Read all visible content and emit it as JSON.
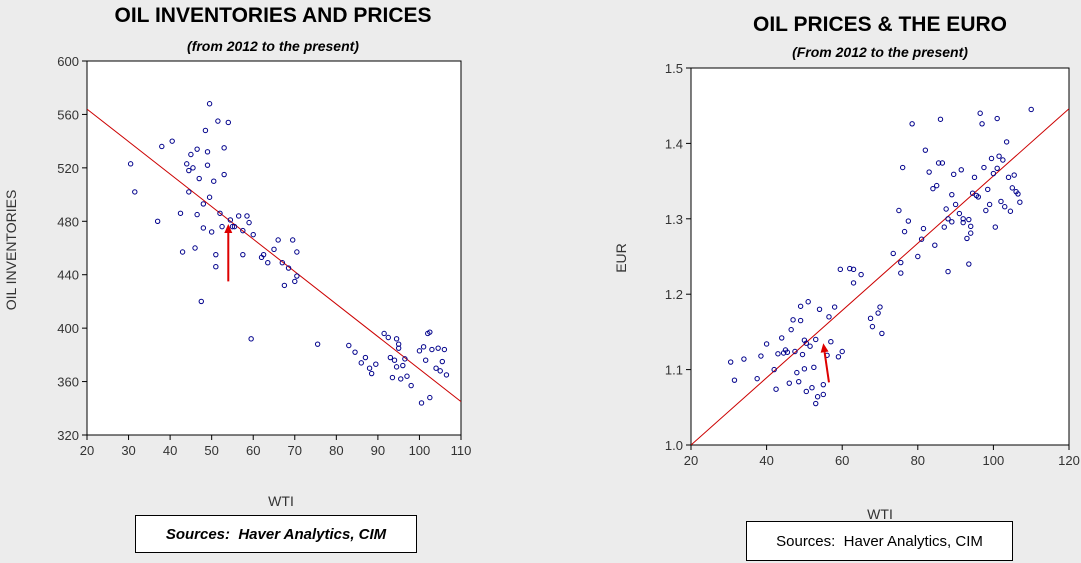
{
  "charts": {
    "left": {
      "title": "OIL INVENTORIES AND PRICES",
      "subtitle": "(from 2012 to the present)",
      "source": "Sources:  Haver Analytics, CIM"
    },
    "right": {
      "title": "OIL PRICES & THE EURO",
      "subtitle": "(From 2012 to the present)",
      "source": "Sources:  Haver Analytics, CIM"
    }
  },
  "chart_data": [
    {
      "type": "scatter",
      "title": "OIL INVENTORIES AND PRICES",
      "subtitle": "(from 2012 to the present)",
      "xlabel": "WTI",
      "ylabel": "OIL INVENTORIES",
      "xlim": [
        20,
        110
      ],
      "ylim": [
        320,
        600
      ],
      "xticks": [
        20,
        30,
        40,
        50,
        60,
        70,
        80,
        90,
        100,
        110
      ],
      "yticks": [
        320,
        360,
        400,
        440,
        480,
        520,
        560,
        600
      ],
      "grid": false,
      "marker_color": "#00008b",
      "fit_line": {
        "color": "#cc0000",
        "points": [
          [
            20,
            564
          ],
          [
            110,
            345
          ]
        ]
      },
      "arrow": {
        "color": "#dd0000",
        "from": [
          54,
          435
        ],
        "to": [
          54,
          478
        ]
      },
      "points": [
        [
          30.5,
          523
        ],
        [
          31.5,
          502
        ],
        [
          37.0,
          480
        ],
        [
          38.0,
          536
        ],
        [
          40.5,
          540
        ],
        [
          42.5,
          486
        ],
        [
          43.0,
          457
        ],
        [
          44.0,
          523
        ],
        [
          44.5,
          518
        ],
        [
          44.5,
          502
        ],
        [
          45.0,
          530
        ],
        [
          45.5,
          520
        ],
        [
          46.0,
          460
        ],
        [
          46.5,
          485
        ],
        [
          46.5,
          534
        ],
        [
          47.0,
          512
        ],
        [
          47.5,
          420
        ],
        [
          48.0,
          493
        ],
        [
          48.0,
          475
        ],
        [
          48.5,
          548
        ],
        [
          49.0,
          522
        ],
        [
          49.0,
          532
        ],
        [
          49.5,
          568
        ],
        [
          49.5,
          498
        ],
        [
          50.0,
          472
        ],
        [
          50.5,
          510
        ],
        [
          51.0,
          446
        ],
        [
          51.0,
          455
        ],
        [
          51.5,
          555
        ],
        [
          52.0,
          486
        ],
        [
          52.5,
          476
        ],
        [
          53.0,
          515
        ],
        [
          53.0,
          535
        ],
        [
          54.0,
          554
        ],
        [
          54.5,
          481
        ],
        [
          55.0,
          476
        ],
        [
          55.5,
          476
        ],
        [
          56.5,
          484
        ],
        [
          57.5,
          473
        ],
        [
          57.5,
          455
        ],
        [
          58.5,
          484
        ],
        [
          59.0,
          479
        ],
        [
          59.5,
          392
        ],
        [
          60.0,
          470
        ],
        [
          62.0,
          453
        ],
        [
          62.5,
          455
        ],
        [
          63.5,
          449
        ],
        [
          65.0,
          459
        ],
        [
          66.0,
          466
        ],
        [
          67.0,
          449
        ],
        [
          67.5,
          432
        ],
        [
          68.5,
          445
        ],
        [
          69.5,
          466
        ],
        [
          70.0,
          435
        ],
        [
          70.5,
          439
        ],
        [
          70.5,
          457
        ],
        [
          75.5,
          388
        ],
        [
          83.0,
          387
        ],
        [
          84.5,
          382
        ],
        [
          86.0,
          374
        ],
        [
          87.0,
          378
        ],
        [
          88.0,
          370
        ],
        [
          88.5,
          366
        ],
        [
          89.5,
          373
        ],
        [
          91.5,
          396
        ],
        [
          92.5,
          393
        ],
        [
          93.0,
          378
        ],
        [
          93.5,
          363
        ],
        [
          94.0,
          376
        ],
        [
          94.5,
          392
        ],
        [
          94.5,
          371
        ],
        [
          95.0,
          385
        ],
        [
          95.0,
          388
        ],
        [
          95.5,
          362
        ],
        [
          96.0,
          372
        ],
        [
          96.5,
          377
        ],
        [
          97.0,
          364
        ],
        [
          98.0,
          357
        ],
        [
          100.0,
          383
        ],
        [
          100.5,
          344
        ],
        [
          101.0,
          386
        ],
        [
          101.5,
          376
        ],
        [
          102.0,
          396
        ],
        [
          102.5,
          397
        ],
        [
          102.5,
          348
        ],
        [
          103.0,
          384
        ],
        [
          104.0,
          370
        ],
        [
          104.5,
          385
        ],
        [
          105.0,
          368
        ],
        [
          105.5,
          375
        ],
        [
          106.0,
          384
        ],
        [
          106.5,
          365
        ]
      ]
    },
    {
      "type": "scatter",
      "title": "OIL PRICES & THE EURO",
      "subtitle": "(From 2012 to the present)",
      "xlabel": "WTI",
      "ylabel": "EUR",
      "xlim": [
        20,
        120
      ],
      "ylim": [
        1.0,
        1.5
      ],
      "xticks": [
        20,
        40,
        60,
        80,
        100,
        120
      ],
      "yticks": [
        1.0,
        1.1,
        1.2,
        1.3,
        1.4,
        1.5
      ],
      "grid": false,
      "marker_color": "#00008b",
      "fit_line": {
        "color": "#cc0000",
        "points": [
          [
            20,
            1.0
          ],
          [
            120,
            1.446
          ]
        ]
      },
      "arrow": {
        "color": "#dd0000",
        "from": [
          56.5,
          1.083
        ],
        "to": [
          55.0,
          1.135
        ]
      },
      "points": [
        [
          30.5,
          1.11
        ],
        [
          31.5,
          1.086
        ],
        [
          34.0,
          1.114
        ],
        [
          37.5,
          1.088
        ],
        [
          38.5,
          1.118
        ],
        [
          40.0,
          1.134
        ],
        [
          42.0,
          1.1
        ],
        [
          42.5,
          1.074
        ],
        [
          43.0,
          1.121
        ],
        [
          44.0,
          1.142
        ],
        [
          44.5,
          1.122
        ],
        [
          45.0,
          1.126
        ],
        [
          45.5,
          1.123
        ],
        [
          46.0,
          1.082
        ],
        [
          46.5,
          1.153
        ],
        [
          47.0,
          1.166
        ],
        [
          47.5,
          1.124
        ],
        [
          48.0,
          1.096
        ],
        [
          48.5,
          1.084
        ],
        [
          49.0,
          1.184
        ],
        [
          49.0,
          1.165
        ],
        [
          49.5,
          1.12
        ],
        [
          50.0,
          1.139
        ],
        [
          50.5,
          1.135
        ],
        [
          50.0,
          1.101
        ],
        [
          50.5,
          1.071
        ],
        [
          51.0,
          1.19
        ],
        [
          51.5,
          1.131
        ],
        [
          52.0,
          1.076
        ],
        [
          52.5,
          1.103
        ],
        [
          53.0,
          1.14
        ],
        [
          53.0,
          1.055
        ],
        [
          53.5,
          1.064
        ],
        [
          54.0,
          1.18
        ],
        [
          55.0,
          1.08
        ],
        [
          55.0,
          1.067
        ],
        [
          56.0,
          1.119
        ],
        [
          56.5,
          1.17
        ],
        [
          57.0,
          1.137
        ],
        [
          58.0,
          1.183
        ],
        [
          59.0,
          1.117
        ],
        [
          59.5,
          1.233
        ],
        [
          60.0,
          1.124
        ],
        [
          62.0,
          1.234
        ],
        [
          63.0,
          1.215
        ],
        [
          63.0,
          1.233
        ],
        [
          65.0,
          1.226
        ],
        [
          67.5,
          1.168
        ],
        [
          68.0,
          1.157
        ],
        [
          69.5,
          1.175
        ],
        [
          70.0,
          1.183
        ],
        [
          70.5,
          1.148
        ],
        [
          73.5,
          1.254
        ],
        [
          75.0,
          1.311
        ],
        [
          75.5,
          1.228
        ],
        [
          75.5,
          1.242
        ],
        [
          76.0,
          1.368
        ],
        [
          76.5,
          1.283
        ],
        [
          77.5,
          1.297
        ],
        [
          78.5,
          1.426
        ],
        [
          80.0,
          1.25
        ],
        [
          81.0,
          1.273
        ],
        [
          81.5,
          1.287
        ],
        [
          82.0,
          1.391
        ],
        [
          83.0,
          1.362
        ],
        [
          84.0,
          1.34
        ],
        [
          84.5,
          1.265
        ],
        [
          85.0,
          1.344
        ],
        [
          85.5,
          1.374
        ],
        [
          86.0,
          1.432
        ],
        [
          86.5,
          1.374
        ],
        [
          87.0,
          1.289
        ],
        [
          87.5,
          1.313
        ],
        [
          88.0,
          1.3
        ],
        [
          88.0,
          1.23
        ],
        [
          89.0,
          1.332
        ],
        [
          89.0,
          1.296
        ],
        [
          89.5,
          1.359
        ],
        [
          90.0,
          1.319
        ],
        [
          91.0,
          1.307
        ],
        [
          91.5,
          1.365
        ],
        [
          92.0,
          1.3
        ],
        [
          92.0,
          1.295
        ],
        [
          93.0,
          1.274
        ],
        [
          93.5,
          1.299
        ],
        [
          93.5,
          1.24
        ],
        [
          94.0,
          1.29
        ],
        [
          94.0,
          1.281
        ],
        [
          94.5,
          1.334
        ],
        [
          95.0,
          1.355
        ],
        [
          95.5,
          1.331
        ],
        [
          96.0,
          1.329
        ],
        [
          96.5,
          1.44
        ],
        [
          97.0,
          1.426
        ],
        [
          97.5,
          1.368
        ],
        [
          98.0,
          1.311
        ],
        [
          98.5,
          1.339
        ],
        [
          99.0,
          1.319
        ],
        [
          99.5,
          1.38
        ],
        [
          100.0,
          1.36
        ],
        [
          100.5,
          1.289
        ],
        [
          101.0,
          1.433
        ],
        [
          101.0,
          1.367
        ],
        [
          101.5,
          1.383
        ],
        [
          102.0,
          1.323
        ],
        [
          102.5,
          1.378
        ],
        [
          103.0,
          1.316
        ],
        [
          103.5,
          1.402
        ],
        [
          104.0,
          1.355
        ],
        [
          104.5,
          1.31
        ],
        [
          105.0,
          1.341
        ],
        [
          105.5,
          1.358
        ],
        [
          106.0,
          1.336
        ],
        [
          106.5,
          1.333
        ],
        [
          107.0,
          1.322
        ],
        [
          110.0,
          1.445
        ]
      ]
    }
  ]
}
